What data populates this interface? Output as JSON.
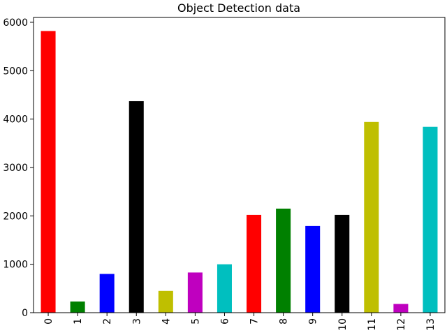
{
  "chart_data": {
    "type": "bar",
    "title": "Object Detection data",
    "xlabel": "",
    "ylabel": "",
    "categories": [
      "0",
      "1",
      "2",
      "3",
      "4",
      "5",
      "6",
      "7",
      "8",
      "9",
      "10",
      "11",
      "12",
      "13"
    ],
    "values": [
      5820,
      230,
      800,
      4370,
      450,
      830,
      1000,
      2020,
      2150,
      1790,
      2020,
      3940,
      180,
      3840
    ],
    "colors": [
      "#ff0000",
      "#008000",
      "#0000ff",
      "#000000",
      "#bfbf00",
      "#bf00bf",
      "#00bfbf",
      "#ff0000",
      "#008000",
      "#0000ff",
      "#000000",
      "#bfbf00",
      "#bf00bf",
      "#00bfbf"
    ],
    "ylim": [
      0,
      6100
    ],
    "yticks": [
      0,
      1000,
      2000,
      3000,
      4000,
      5000,
      6000
    ],
    "grid": false,
    "legend": "none"
  }
}
